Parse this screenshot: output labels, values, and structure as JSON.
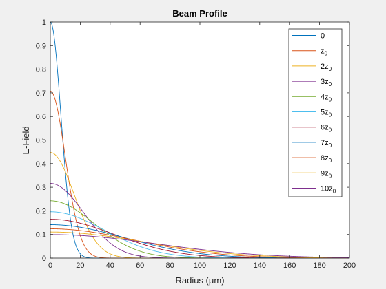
{
  "chart_data": {
    "type": "line",
    "title": "Beam Profile",
    "xlabel": "Radius (μm)",
    "ylabel": "E-Field",
    "xlim": [
      0,
      200
    ],
    "ylim": [
      0,
      1
    ],
    "x_ticks": [
      0,
      20,
      40,
      60,
      80,
      100,
      120,
      140,
      160,
      180,
      200
    ],
    "y_ticks": [
      0,
      0.1,
      0.2,
      0.3,
      0.4,
      0.5,
      0.6,
      0.7,
      0.8,
      0.9,
      1
    ],
    "x_tick_labels": [
      "0",
      "20",
      "40",
      "60",
      "80",
      "100",
      "120",
      "140",
      "160",
      "180",
      "200"
    ],
    "y_tick_labels": [
      "0",
      "0.1",
      "0.2",
      "0.3",
      "0.4",
      "0.5",
      "0.6",
      "0.7",
      "0.8",
      "0.9",
      "1"
    ],
    "grid": false,
    "legend_position": "top-right",
    "waist_um": 10,
    "series": [
      {
        "name": "0",
        "legend_label": {
          "base": "",
          "sub": ""
        },
        "z_over_z0": 0,
        "peak": 1.0,
        "color": "#0072BD"
      },
      {
        "name": "z0",
        "legend_label": {
          "base": "z",
          "sub": "0"
        },
        "z_over_z0": 1,
        "peak": 0.7071,
        "color": "#D95319"
      },
      {
        "name": "2z0",
        "legend_label": {
          "base": "2z",
          "sub": "0"
        },
        "z_over_z0": 2,
        "peak": 0.4472,
        "color": "#EDB120"
      },
      {
        "name": "3z0",
        "legend_label": {
          "base": "3z",
          "sub": "0"
        },
        "z_over_z0": 3,
        "peak": 0.3162,
        "color": "#7E2F8E"
      },
      {
        "name": "4z0",
        "legend_label": {
          "base": "4z",
          "sub": "0"
        },
        "z_over_z0": 4,
        "peak": 0.2425,
        "color": "#77AC30"
      },
      {
        "name": "5z0",
        "legend_label": {
          "base": "5z",
          "sub": "0"
        },
        "z_over_z0": 5,
        "peak": 0.1961,
        "color": "#4DBEEE"
      },
      {
        "name": "6z0",
        "legend_label": {
          "base": "6z",
          "sub": "0"
        },
        "z_over_z0": 6,
        "peak": 0.1644,
        "color": "#A2142F"
      },
      {
        "name": "7z0",
        "legend_label": {
          "base": "7z",
          "sub": "0"
        },
        "z_over_z0": 7,
        "peak": 0.1414,
        "color": "#0072BD"
      },
      {
        "name": "8z0",
        "legend_label": {
          "base": "8z",
          "sub": "0"
        },
        "z_over_z0": 8,
        "peak": 0.124,
        "color": "#D95319"
      },
      {
        "name": "9z0",
        "legend_label": {
          "base": "9z",
          "sub": "0"
        },
        "z_over_z0": 9,
        "peak": 0.1104,
        "color": "#EDB120"
      },
      {
        "name": "10z0",
        "legend_label": {
          "base": "10z",
          "sub": "0"
        },
        "z_over_z0": 10,
        "peak": 0.0995,
        "color": "#7E2F8E"
      }
    ]
  },
  "legend_plain": [
    "0"
  ]
}
